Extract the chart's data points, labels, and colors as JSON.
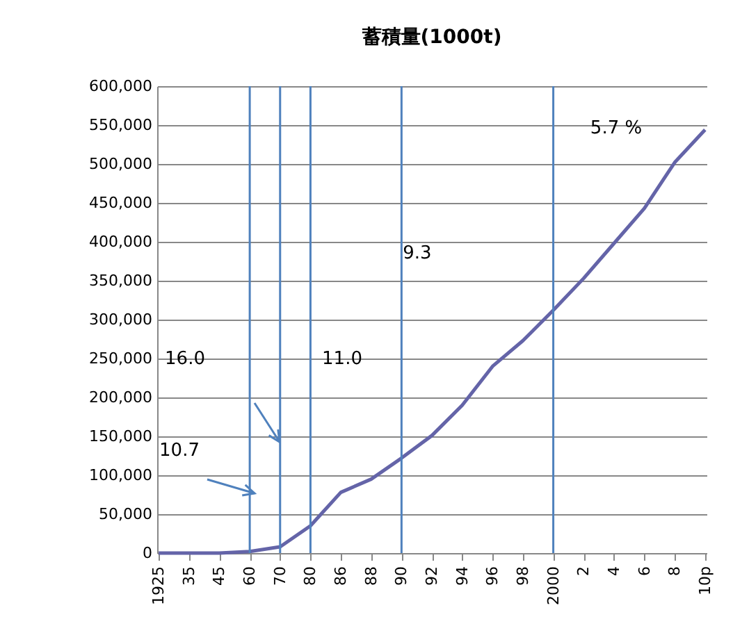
{
  "chart_data": {
    "type": "line",
    "title": "蓄積量(1000t)",
    "categories": [
      "1925",
      "35",
      "45",
      "60",
      "70",
      "80",
      "86",
      "88",
      "90",
      "92",
      "94",
      "96",
      "98",
      "2000",
      "2",
      "4",
      "6",
      "8",
      "10p"
    ],
    "series": [
      {
        "color": "#6464a8",
        "values": [
          0,
          0,
          0,
          2000,
          8000,
          35000,
          78000,
          95000,
          122000,
          151000,
          190000,
          240000,
          273000,
          312000,
          353000,
          398000,
          443000,
          502000,
          544000
        ]
      }
    ],
    "ylim": [
      0,
      600000
    ],
    "yticks": [
      0,
      {
        "value": 50000,
        "label": "50,000"
      },
      {
        "value": 100000,
        "label": "100,000"
      },
      {
        "value": 150000,
        "label": "150,000"
      },
      {
        "value": 200000,
        "label": "200,000"
      },
      {
        "value": 250000,
        "label": "250,000"
      },
      {
        "value": 300000,
        "label": "300,000"
      },
      {
        "value": 350000,
        "label": "350,000"
      },
      {
        "value": 400000,
        "label": "400,000"
      },
      {
        "value": 450000,
        "label": "450,000"
      },
      {
        "value": 500000,
        "label": "500,000"
      },
      {
        "value": 550000,
        "label": "550,000"
      },
      {
        "value": 600000,
        "label": "600,000"
      }
    ],
    "grid": "y",
    "ref_lines": [
      {
        "axis": "x",
        "value": "60",
        "color": "#4f81bd"
      },
      {
        "axis": "x",
        "value": "70",
        "color": "#4f81bd"
      },
      {
        "axis": "x",
        "value": "80",
        "color": "#4f81bd"
      },
      {
        "axis": "x",
        "value": "90",
        "color": "#4f81bd"
      },
      {
        "axis": "x",
        "value": "2000",
        "color": "#4f81bd"
      }
    ],
    "annotations": [
      "10.7",
      "16.0",
      "11.0",
      "9.3",
      "5.7 %"
    ]
  }
}
